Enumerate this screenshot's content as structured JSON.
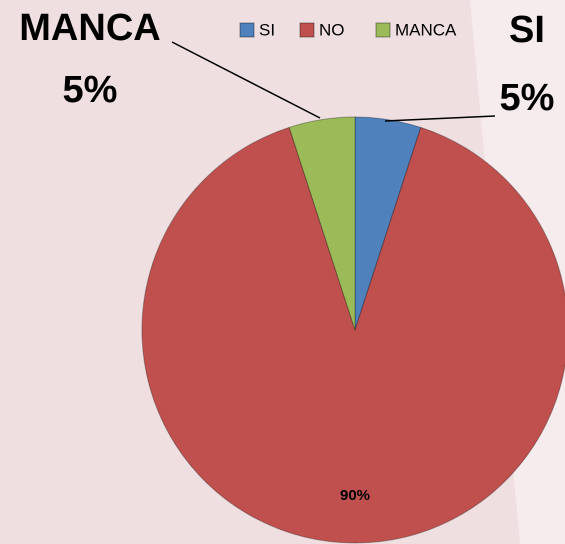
{
  "chart_data": {
    "type": "pie",
    "categories": [
      "SI",
      "NO",
      "MANCA"
    ],
    "values": [
      5,
      90,
      5
    ],
    "value_labels": [
      "5%",
      "90%",
      "5%"
    ],
    "colors": [
      "#4f81bd",
      "#c0504d",
      "#9bbb59"
    ],
    "legend": "top"
  }
}
